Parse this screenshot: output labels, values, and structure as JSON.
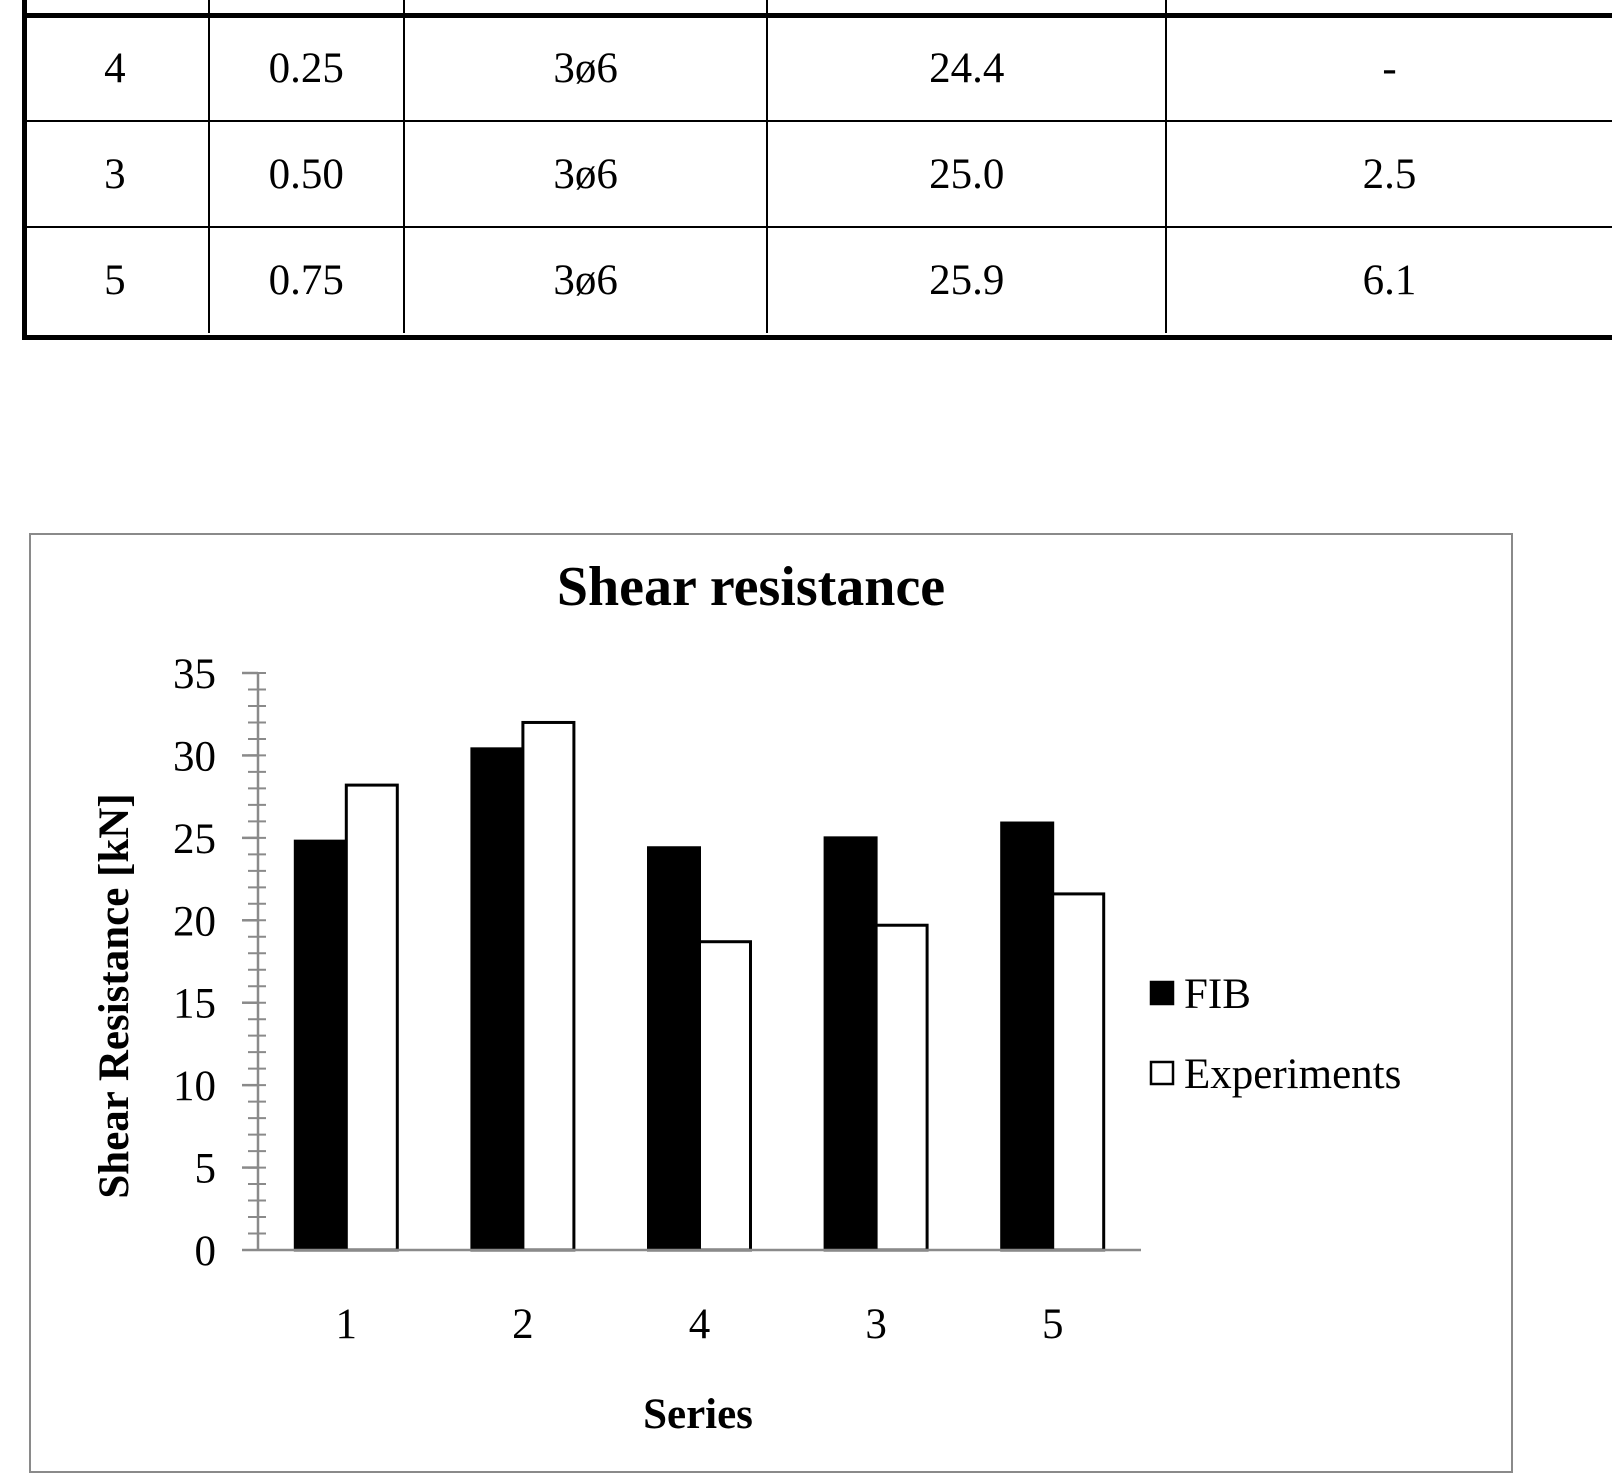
{
  "table": {
    "rows": [
      [
        "4",
        "0.25",
        "3ø6",
        "24.4",
        "-"
      ],
      [
        "3",
        "0.50",
        "3ø6",
        "25.0",
        "2.5"
      ],
      [
        "5",
        "0.75",
        "3ø6",
        "25.9",
        "6.1"
      ]
    ]
  },
  "chart_data": {
    "type": "bar",
    "title": "Shear resistance",
    "xlabel": "Series",
    "ylabel": "Shear Resistance [kN]",
    "ylim": [
      0,
      35
    ],
    "y_major_step": 5,
    "y_minor_step": 1,
    "categories": [
      "1",
      "2",
      "4",
      "3",
      "5"
    ],
    "series": [
      {
        "name": "FIB",
        "color": "#000000",
        "values": [
          24.8,
          30.4,
          24.4,
          25.0,
          25.9
        ]
      },
      {
        "name": "Experiments",
        "color": "#ffffff",
        "values": [
          28.2,
          32.0,
          18.7,
          19.7,
          21.6
        ]
      }
    ],
    "legend": "right",
    "grid": false
  }
}
